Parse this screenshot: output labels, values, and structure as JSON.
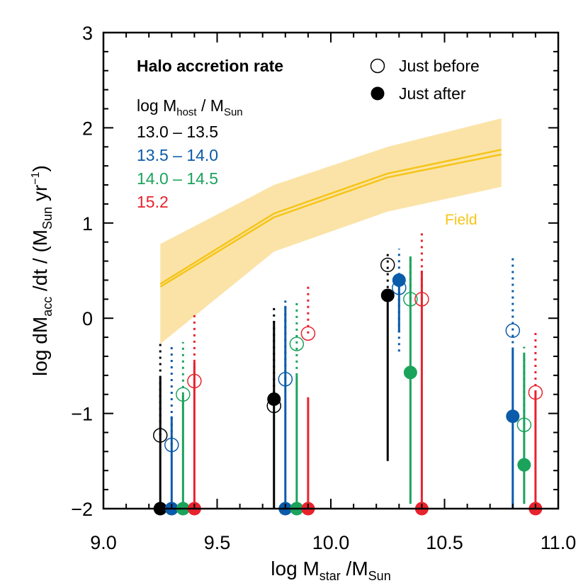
{
  "chart_data": {
    "type": "scatter",
    "title": "Halo accretion rate",
    "xlabel": {
      "base": "log M",
      "sub": "star",
      "mid": " /M",
      "sub2": "Sun"
    },
    "ylabel": {
      "base": "log dM",
      "sub": "acc",
      "mid": " /dt / (M",
      "sub2": "Sun",
      "mid2": " yr",
      "sup": "−1",
      "end": ")"
    },
    "xlim": [
      9.0,
      11.0
    ],
    "ylim": [
      -2.0,
      3.0
    ],
    "x_ticks": [
      "9.0",
      "9.5",
      "10.0",
      "10.5",
      "11.0"
    ],
    "y_ticks": [
      "−2",
      "−1",
      "0",
      "1",
      "2",
      "3"
    ],
    "legend": {
      "open_label": "Just before",
      "filled_label": "Just after",
      "host_header": {
        "base": "log M",
        "sub": "host",
        "mid": " / M",
        "sub2": "Sun"
      }
    },
    "field": {
      "label": "Field",
      "color": "#F5C518",
      "band_color": "#FBE3A8",
      "x": [
        9.25,
        9.75,
        10.25,
        10.75
      ],
      "median_upper": [
        0.36,
        1.1,
        1.52,
        1.77
      ],
      "median_lower": [
        0.33,
        1.06,
        1.48,
        1.72
      ],
      "band_upper": [
        0.78,
        1.4,
        1.8,
        2.1
      ],
      "band_lower": [
        -0.27,
        0.7,
        1.12,
        1.38
      ]
    },
    "series": [
      {
        "name": "13.0 – 13.5",
        "color": "#000000",
        "before": [
          {
            "x": 9.25,
            "y": -1.23,
            "lo": -1.23,
            "hi": -0.27
          },
          {
            "x": 9.75,
            "y": -0.92,
            "lo": -0.92,
            "hi": 0.15
          },
          {
            "x": 10.25,
            "y": 0.56,
            "lo": 0.25,
            "hi": 0.7
          }
        ],
        "after": [
          {
            "x": 9.25,
            "y": -2.0,
            "lo": -2.0,
            "hi": -0.62
          },
          {
            "x": 9.75,
            "y": -0.85,
            "lo": -2.0,
            "hi": -0.03
          },
          {
            "x": 10.25,
            "y": 0.24,
            "lo": -1.5,
            "hi": 0.24
          }
        ]
      },
      {
        "name": "13.5 – 14.0",
        "color": "#0A5BAA",
        "before": [
          {
            "x": 9.3,
            "y": -1.33,
            "lo": -1.33,
            "hi": -0.27
          },
          {
            "x": 9.8,
            "y": -0.64,
            "lo": -0.64,
            "hi": 0.2
          },
          {
            "x": 10.3,
            "y": 0.32,
            "lo": -0.35,
            "hi": 0.73
          },
          {
            "x": 10.8,
            "y": -0.13,
            "lo": -0.33,
            "hi": 0.65
          }
        ],
        "after": [
          {
            "x": 9.3,
            "y": -2.0,
            "lo": -2.0,
            "hi": -1.03
          },
          {
            "x": 9.8,
            "y": -2.0,
            "lo": -2.0,
            "hi": 0.13
          },
          {
            "x": 10.3,
            "y": 0.4,
            "lo": -0.15,
            "hi": 0.4
          },
          {
            "x": 10.8,
            "y": -1.03,
            "lo": -2.0,
            "hi": -0.33
          }
        ]
      },
      {
        "name": "14.0 – 14.5",
        "color": "#1BA35C",
        "before": [
          {
            "x": 9.35,
            "y": -0.8,
            "lo": -0.8,
            "hi": -0.25
          },
          {
            "x": 9.85,
            "y": -0.27,
            "lo": -0.6,
            "hi": 0.2
          },
          {
            "x": 10.35,
            "y": 0.2,
            "lo": 0.2,
            "hi": 0.65
          },
          {
            "x": 10.85,
            "y": -1.12,
            "lo": -1.12,
            "hi": -0.3
          }
        ],
        "after": [
          {
            "x": 9.35,
            "y": -2.0,
            "lo": -2.0,
            "hi": -0.8
          },
          {
            "x": 9.85,
            "y": -2.0,
            "lo": -2.0,
            "hi": -0.6
          },
          {
            "x": 10.35,
            "y": -0.57,
            "lo": -1.95,
            "hi": 0.65
          },
          {
            "x": 10.85,
            "y": -1.54,
            "lo": -1.95,
            "hi": -0.38
          }
        ]
      },
      {
        "name": "15.2",
        "color": "#E8232D",
        "before": [
          {
            "x": 9.4,
            "y": -0.66,
            "lo": -0.66,
            "hi": 0.05
          },
          {
            "x": 9.9,
            "y": -0.16,
            "lo": -0.16,
            "hi": 0.35
          },
          {
            "x": 10.4,
            "y": 0.2,
            "lo": 0.2,
            "hi": 0.9
          },
          {
            "x": 10.9,
            "y": -0.78,
            "lo": -0.78,
            "hi": -0.12
          }
        ],
        "after": [
          {
            "x": 9.4,
            "y": -2.0,
            "lo": -2.0,
            "hi": -0.46
          },
          {
            "x": 9.9,
            "y": -2.0,
            "lo": -2.0,
            "hi": -0.83
          },
          {
            "x": 10.4,
            "y": -2.0,
            "lo": -2.0,
            "hi": 0.5
          },
          {
            "x": 10.9,
            "y": -2.0,
            "lo": -2.0,
            "hi": -0.78
          }
        ]
      }
    ]
  }
}
